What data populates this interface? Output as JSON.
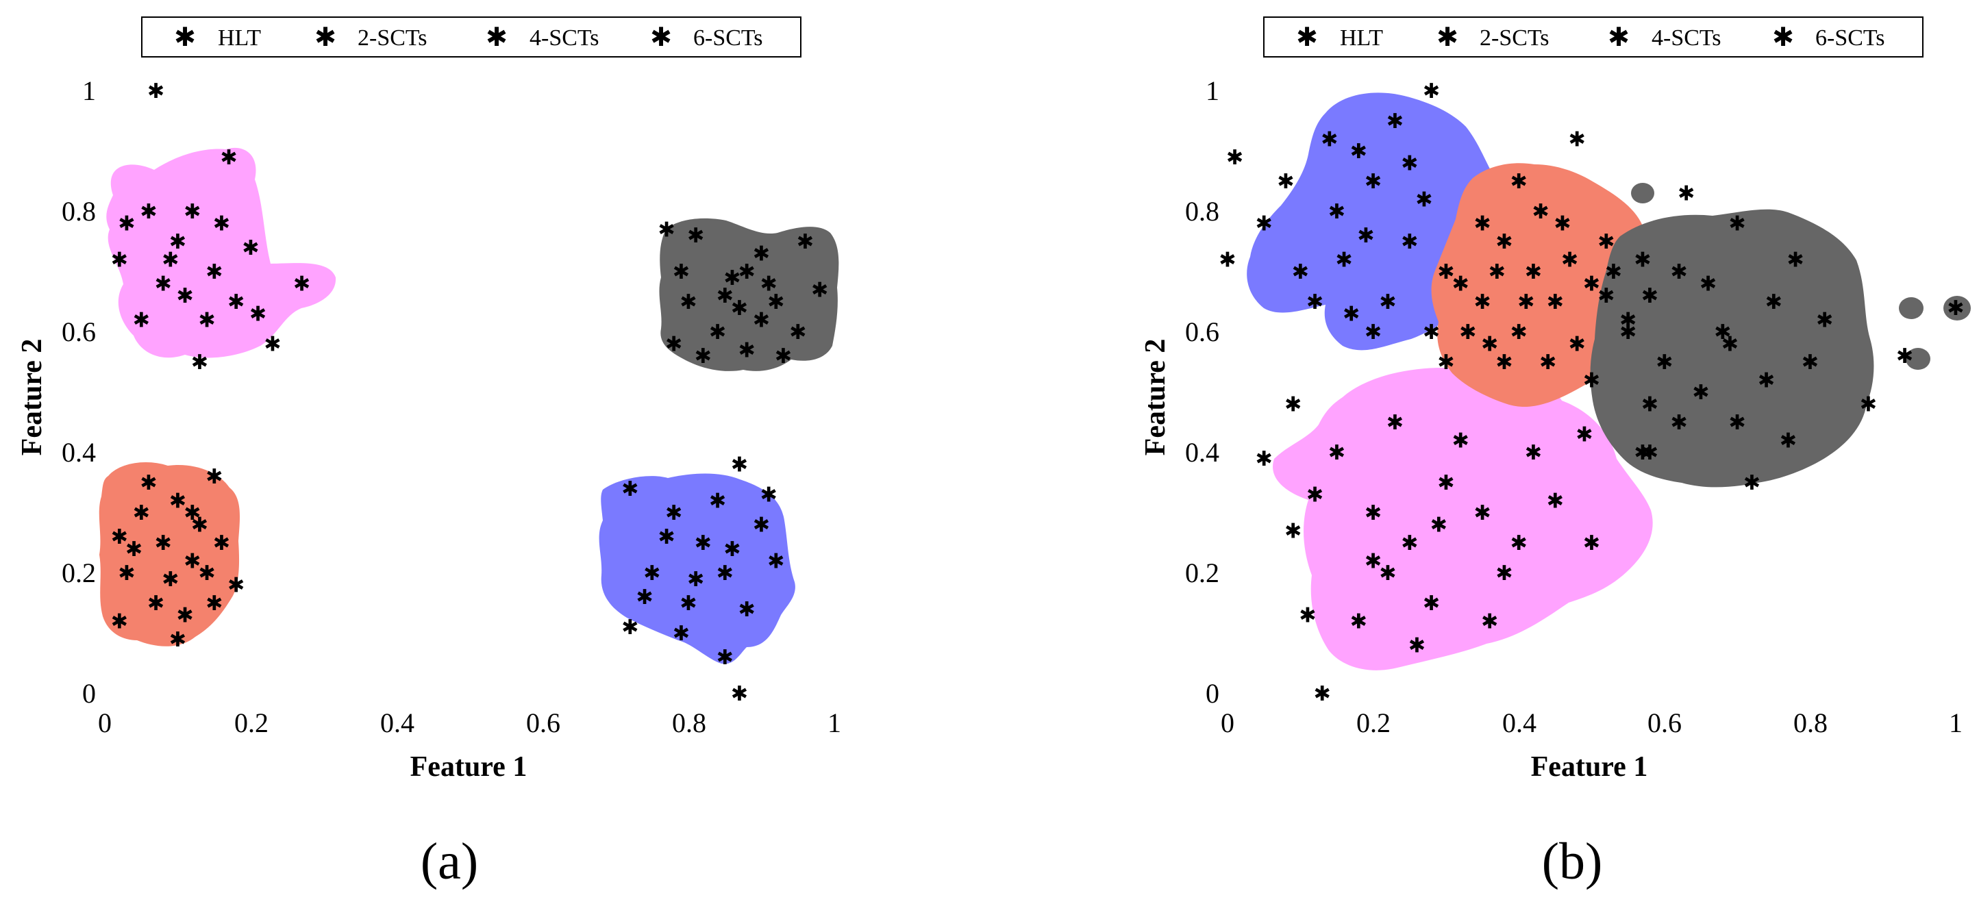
{
  "series_names": [
    "HLT",
    "2-SCTs",
    "4-SCTs",
    "6-SCTs"
  ],
  "colors": {
    "HLT": "#000000",
    "2-SCTs": "#ff0000",
    "4-SCTs": "#0000ff",
    "6-SCTs": "#ff00ff",
    "HLT_region": "#7a7a7a",
    "2-SCTs_region": "#f4826d",
    "4-SCTs_region": "#7a7aff",
    "6-SCTs_region": "#ffa3ff"
  },
  "chart_data": [
    {
      "type": "scatter",
      "panel_label": "(a)",
      "xlabel": "Feature 1",
      "ylabel": "Feature 2",
      "xlim": [
        0,
        1
      ],
      "ylim": [
        0,
        1
      ],
      "xticks": [
        "0",
        "0.2",
        "0.4",
        "0.6",
        "0.8",
        "1"
      ],
      "yticks": [
        "0",
        "0.2",
        "0.4",
        "0.6",
        "0.8",
        "1"
      ],
      "legend": [
        "HLT",
        "2-SCTs",
        "4-SCTs",
        "6-SCTs"
      ],
      "series": [
        {
          "name": "HLT",
          "points": [
            [
              0.77,
              0.77
            ],
            [
              0.81,
              0.76
            ],
            [
              0.9,
              0.73
            ],
            [
              0.96,
              0.75
            ],
            [
              0.98,
              0.67
            ],
            [
              0.88,
              0.7
            ],
            [
              0.85,
              0.66
            ],
            [
              0.92,
              0.65
            ],
            [
              0.8,
              0.65
            ],
            [
              0.84,
              0.6
            ],
            [
              0.88,
              0.57
            ],
            [
              0.9,
              0.62
            ],
            [
              0.95,
              0.6
            ],
            [
              0.82,
              0.56
            ],
            [
              0.78,
              0.58
            ],
            [
              0.87,
              0.64
            ],
            [
              0.93,
              0.56
            ],
            [
              0.86,
              0.69
            ],
            [
              0.79,
              0.7
            ],
            [
              0.91,
              0.68
            ]
          ]
        },
        {
          "name": "2-SCTs",
          "points": [
            [
              0.15,
              0.36
            ],
            [
              0.18,
              0.18
            ],
            [
              0.1,
              0.09
            ],
            [
              0.02,
              0.12
            ],
            [
              0.05,
              0.3
            ],
            [
              0.08,
              0.25
            ],
            [
              0.12,
              0.22
            ],
            [
              0.15,
              0.15
            ],
            [
              0.03,
              0.2
            ],
            [
              0.1,
              0.32
            ],
            [
              0.07,
              0.15
            ],
            [
              0.13,
              0.28
            ],
            [
              0.16,
              0.25
            ],
            [
              0.04,
              0.24
            ],
            [
              0.09,
              0.19
            ],
            [
              0.11,
              0.13
            ],
            [
              0.06,
              0.35
            ],
            [
              0.14,
              0.2
            ],
            [
              0.02,
              0.26
            ],
            [
              0.12,
              0.3
            ]
          ]
        },
        {
          "name": "4-SCTs",
          "points": [
            [
              0.87,
              0.38
            ],
            [
              0.87,
              0.0
            ],
            [
              0.72,
              0.11
            ],
            [
              0.85,
              0.06
            ],
            [
              0.72,
              0.34
            ],
            [
              0.78,
              0.3
            ],
            [
              0.82,
              0.25
            ],
            [
              0.85,
              0.2
            ],
            [
              0.8,
              0.15
            ],
            [
              0.75,
              0.2
            ],
            [
              0.9,
              0.28
            ],
            [
              0.92,
              0.22
            ],
            [
              0.77,
              0.26
            ],
            [
              0.84,
              0.32
            ],
            [
              0.81,
              0.19
            ],
            [
              0.88,
              0.14
            ],
            [
              0.74,
              0.16
            ],
            [
              0.86,
              0.24
            ],
            [
              0.79,
              0.1
            ],
            [
              0.91,
              0.33
            ]
          ]
        },
        {
          "name": "6-SCTs",
          "points": [
            [
              0.07,
              1.0
            ],
            [
              0.17,
              0.89
            ],
            [
              0.03,
              0.78
            ],
            [
              0.02,
              0.72
            ],
            [
              0.05,
              0.62
            ],
            [
              0.13,
              0.55
            ],
            [
              0.23,
              0.58
            ],
            [
              0.27,
              0.68
            ],
            [
              0.1,
              0.75
            ],
            [
              0.15,
              0.7
            ],
            [
              0.12,
              0.8
            ],
            [
              0.18,
              0.65
            ],
            [
              0.08,
              0.68
            ],
            [
              0.2,
              0.74
            ],
            [
              0.14,
              0.62
            ],
            [
              0.06,
              0.8
            ],
            [
              0.11,
              0.66
            ],
            [
              0.16,
              0.78
            ],
            [
              0.21,
              0.63
            ],
            [
              0.09,
              0.72
            ]
          ]
        }
      ]
    },
    {
      "type": "scatter",
      "panel_label": "(b)",
      "xlabel": "Feature 1",
      "ylabel": "Feature 2",
      "xlim": [
        0,
        1
      ],
      "ylim": [
        0,
        1
      ],
      "xticks": [
        "0",
        "0.2",
        "0.4",
        "0.6",
        "0.8",
        "1"
      ],
      "yticks": [
        "0",
        "0.2",
        "0.4",
        "0.6",
        "0.8",
        "1"
      ],
      "legend": [
        "HLT",
        "2-SCTs",
        "4-SCTs",
        "6-SCTs"
      ],
      "series": [
        {
          "name": "HLT",
          "points": [
            [
              0.63,
              0.83
            ],
            [
              1.0,
              0.64
            ],
            [
              0.93,
              0.56
            ],
            [
              0.7,
              0.78
            ],
            [
              0.78,
              0.72
            ],
            [
              0.88,
              0.48
            ],
            [
              0.72,
              0.35
            ],
            [
              0.58,
              0.4
            ],
            [
              0.6,
              0.55
            ],
            [
              0.65,
              0.5
            ],
            [
              0.68,
              0.6
            ],
            [
              0.75,
              0.65
            ],
            [
              0.62,
              0.7
            ],
            [
              0.55,
              0.6
            ],
            [
              0.8,
              0.55
            ],
            [
              0.7,
              0.45
            ],
            [
              0.58,
              0.48
            ],
            [
              0.66,
              0.68
            ],
            [
              0.74,
              0.52
            ],
            [
              0.52,
              0.66
            ],
            [
              0.62,
              0.45
            ],
            [
              0.82,
              0.62
            ],
            [
              0.57,
              0.72
            ],
            [
              0.69,
              0.58
            ],
            [
              0.77,
              0.42
            ]
          ]
        },
        {
          "name": "2-SCTs",
          "points": [
            [
              0.48,
              0.92
            ],
            [
              0.17,
              0.63
            ],
            [
              0.49,
              0.43
            ],
            [
              0.4,
              0.85
            ],
            [
              0.38,
              0.75
            ],
            [
              0.42,
              0.7
            ],
            [
              0.45,
              0.65
            ],
            [
              0.5,
              0.68
            ],
            [
              0.48,
              0.58
            ],
            [
              0.4,
              0.6
            ],
            [
              0.35,
              0.65
            ],
            [
              0.52,
              0.75
            ],
            [
              0.44,
              0.55
            ],
            [
              0.38,
              0.55
            ],
            [
              0.55,
              0.62
            ],
            [
              0.46,
              0.78
            ],
            [
              0.33,
              0.6
            ],
            [
              0.5,
              0.52
            ],
            [
              0.43,
              0.8
            ],
            [
              0.37,
              0.7
            ],
            [
              0.53,
              0.7
            ],
            [
              0.41,
              0.65
            ],
            [
              0.47,
              0.72
            ],
            [
              0.36,
              0.58
            ],
            [
              0.58,
              0.66
            ]
          ]
        },
        {
          "name": "4-SCTs",
          "points": [
            [
              0.28,
              1.0
            ],
            [
              0.01,
              0.89
            ],
            [
              0.0,
              0.72
            ],
            [
              0.09,
              0.48
            ],
            [
              0.2,
              0.85
            ],
            [
              0.15,
              0.8
            ],
            [
              0.25,
              0.75
            ],
            [
              0.1,
              0.7
            ],
            [
              0.22,
              0.65
            ],
            [
              0.3,
              0.7
            ],
            [
              0.18,
              0.9
            ],
            [
              0.12,
              0.65
            ],
            [
              0.27,
              0.82
            ],
            [
              0.05,
              0.78
            ],
            [
              0.32,
              0.68
            ],
            [
              0.23,
              0.95
            ],
            [
              0.16,
              0.72
            ],
            [
              0.28,
              0.6
            ],
            [
              0.08,
              0.85
            ],
            [
              0.2,
              0.6
            ],
            [
              0.35,
              0.78
            ],
            [
              0.14,
              0.92
            ],
            [
              0.25,
              0.88
            ],
            [
              0.3,
              0.55
            ],
            [
              0.19,
              0.76
            ]
          ]
        },
        {
          "name": "6-SCTs",
          "points": [
            [
              0.13,
              0.0
            ],
            [
              0.09,
              0.27
            ],
            [
              0.11,
              0.13
            ],
            [
              0.05,
              0.39
            ],
            [
              0.57,
              0.4
            ],
            [
              0.2,
              0.3
            ],
            [
              0.25,
              0.25
            ],
            [
              0.3,
              0.35
            ],
            [
              0.35,
              0.3
            ],
            [
              0.22,
              0.2
            ],
            [
              0.28,
              0.15
            ],
            [
              0.4,
              0.25
            ],
            [
              0.15,
              0.4
            ],
            [
              0.32,
              0.42
            ],
            [
              0.45,
              0.32
            ],
            [
              0.18,
              0.12
            ],
            [
              0.26,
              0.08
            ],
            [
              0.38,
              0.2
            ],
            [
              0.12,
              0.33
            ],
            [
              0.42,
              0.4
            ],
            [
              0.23,
              0.45
            ],
            [
              0.36,
              0.12
            ],
            [
              0.5,
              0.25
            ],
            [
              0.29,
              0.28
            ],
            [
              0.2,
              0.22
            ]
          ]
        }
      ]
    }
  ]
}
